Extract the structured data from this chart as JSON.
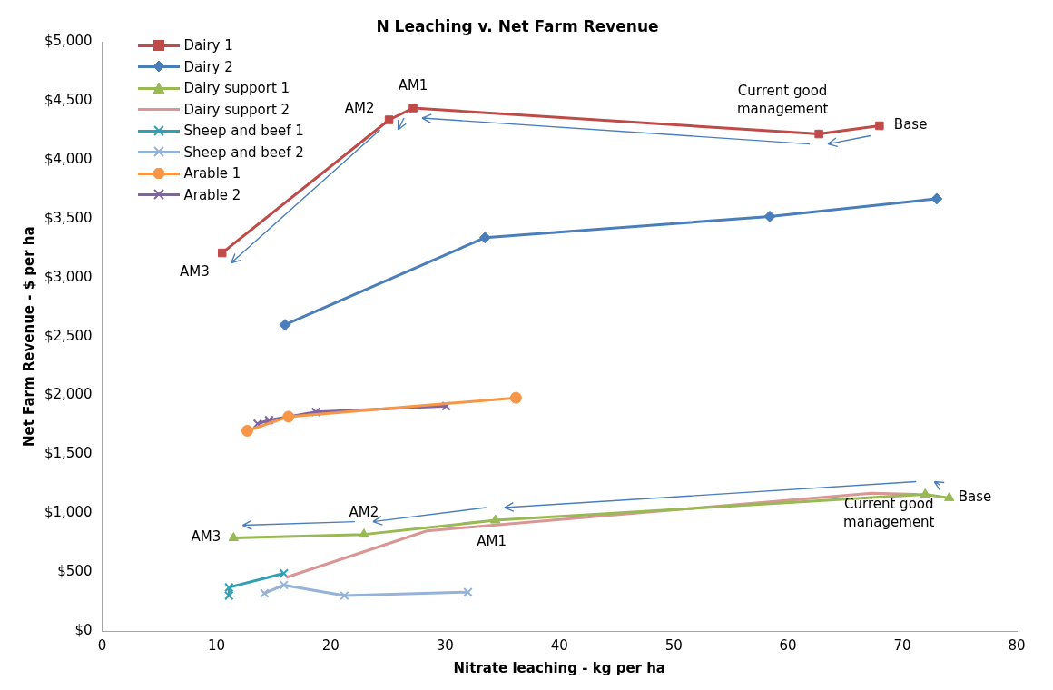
{
  "chart_data": {
    "type": "line",
    "title": "N Leaching v. Net Farm Revenue",
    "xlabel": "Nitrate leaching - kg per ha",
    "ylabel": "Net Farm Revenue - $ per ha",
    "xlim": [
      0,
      80
    ],
    "xticks": [
      0,
      10,
      20,
      30,
      40,
      50,
      60,
      70,
      80
    ],
    "ylim": [
      0,
      5000
    ],
    "yticks": [
      {
        "value": 0,
        "label": "$0"
      },
      {
        "value": 500,
        "label": "$500"
      },
      {
        "value": 1000,
        "label": "$1,000"
      },
      {
        "value": 1500,
        "label": "$1,500"
      },
      {
        "value": 2000,
        "label": "$2,000"
      },
      {
        "value": 2500,
        "label": "$2,500"
      },
      {
        "value": 3000,
        "label": "$3,000"
      },
      {
        "value": 3500,
        "label": "$3,500"
      },
      {
        "value": 4000,
        "label": "$4,000"
      },
      {
        "value": 4500,
        "label": "$4,500"
      },
      {
        "value": 5000,
        "label": "$5,000"
      }
    ],
    "grid": false,
    "legend": "top left",
    "series": [
      {
        "name": "Dairy 1",
        "color": "#be4b48",
        "marker": "square",
        "x": [
          10.5,
          25.1,
          27.2,
          62.7,
          68.0
        ],
        "values": [
          3210,
          4340,
          4440,
          4220,
          4290
        ]
      },
      {
        "name": "Dairy 2",
        "color": "#4a7ebb",
        "marker": "diamond",
        "x": [
          16.0,
          33.5,
          58.4,
          73.0
        ],
        "values": [
          2600,
          3340,
          3520,
          3670
        ]
      },
      {
        "name": "Dairy support 1",
        "color": "#98b954",
        "marker": "triangle",
        "x": [
          11.5,
          22.9,
          34.4,
          72.0,
          74.1
        ],
        "values": [
          790,
          820,
          940,
          1160,
          1130
        ]
      },
      {
        "name": "Dairy support 2",
        "color": "#d99694",
        "marker": "none",
        "x": [
          16.1,
          28.4,
          67.3,
          71.3
        ],
        "values": [
          455,
          850,
          1170,
          1160
        ]
      },
      {
        "name": "Sheep and beef 1",
        "color": "#31a0b4",
        "marker": "cross",
        "x": [
          11.1,
          11.1,
          15.9
        ],
        "values": [
          300,
          370,
          490
        ]
      },
      {
        "name": "Sheep and beef 2",
        "color": "#95b3d7",
        "marker": "cross",
        "x": [
          14.2,
          15.9,
          21.2,
          32.0
        ],
        "values": [
          320,
          390,
          300,
          330
        ]
      },
      {
        "name": "Arable 1",
        "color": "#f79646",
        "marker": "circle",
        "x": [
          12.7,
          16.3,
          36.2
        ],
        "values": [
          1700,
          1820,
          1980
        ]
      },
      {
        "name": "Arable 2",
        "color": "#7f64a0",
        "marker": "cross",
        "x": [
          13.6,
          14.6,
          18.7,
          30.1
        ],
        "values": [
          1760,
          1790,
          1860,
          1910
        ]
      }
    ],
    "annotations": [
      {
        "text": "Base",
        "x": 68.0,
        "y": 4290
      },
      {
        "text": "Current good management",
        "x": 62.7,
        "y": 4220
      },
      {
        "text": "AM1",
        "x": 27.2,
        "y": 4440
      },
      {
        "text": "AM2",
        "x": 25.1,
        "y": 4340
      },
      {
        "text": "AM3",
        "x": 10.5,
        "y": 3210
      },
      {
        "text": "Base",
        "x": 74.1,
        "y": 1130
      },
      {
        "text": "Current good management",
        "x": 72.0,
        "y": 1160
      },
      {
        "text": "AM1",
        "x": 34.4,
        "y": 940
      },
      {
        "text": "AM2",
        "x": 22.9,
        "y": 820
      },
      {
        "text": "AM3",
        "x": 11.5,
        "y": 790
      }
    ]
  }
}
